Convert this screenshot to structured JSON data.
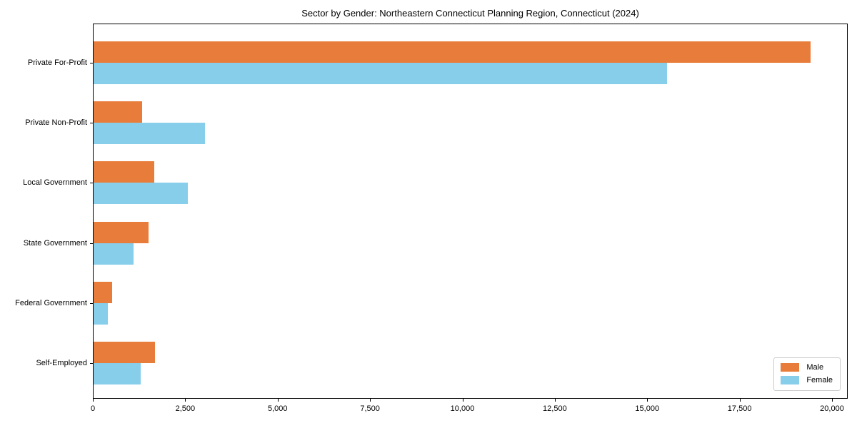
{
  "chart_data": {
    "type": "bar",
    "orientation": "horizontal",
    "title": "Sector by Gender: Northeastern Connecticut Planning Region, Connecticut (2024)",
    "categories": [
      "Private For-Profit",
      "Private Non-Profit",
      "Local Government",
      "State Government",
      "Federal Government",
      "Self-Employed"
    ],
    "series": [
      {
        "name": "Male",
        "color": "#e87d3b",
        "values": [
          19400,
          1320,
          1650,
          1480,
          510,
          1670
        ]
      },
      {
        "name": "Female",
        "color": "#87ceeb",
        "values": [
          15520,
          3020,
          2550,
          1080,
          380,
          1280
        ]
      }
    ],
    "xlabel": "",
    "ylabel": "",
    "xlim": [
      0,
      20000
    ],
    "xticks": [
      0,
      2500,
      5000,
      7500,
      10000,
      12500,
      15000,
      17500,
      20000
    ],
    "xtick_labels": [
      "0",
      "2,500",
      "5,000",
      "7,500",
      "10,000",
      "12,500",
      "15,000",
      "17,500",
      "20,000"
    ],
    "grid": false,
    "legend_position": "lower right",
    "colors": {
      "axis": "#000000",
      "legend_border": "#cccccc",
      "background": "#ffffff"
    }
  }
}
